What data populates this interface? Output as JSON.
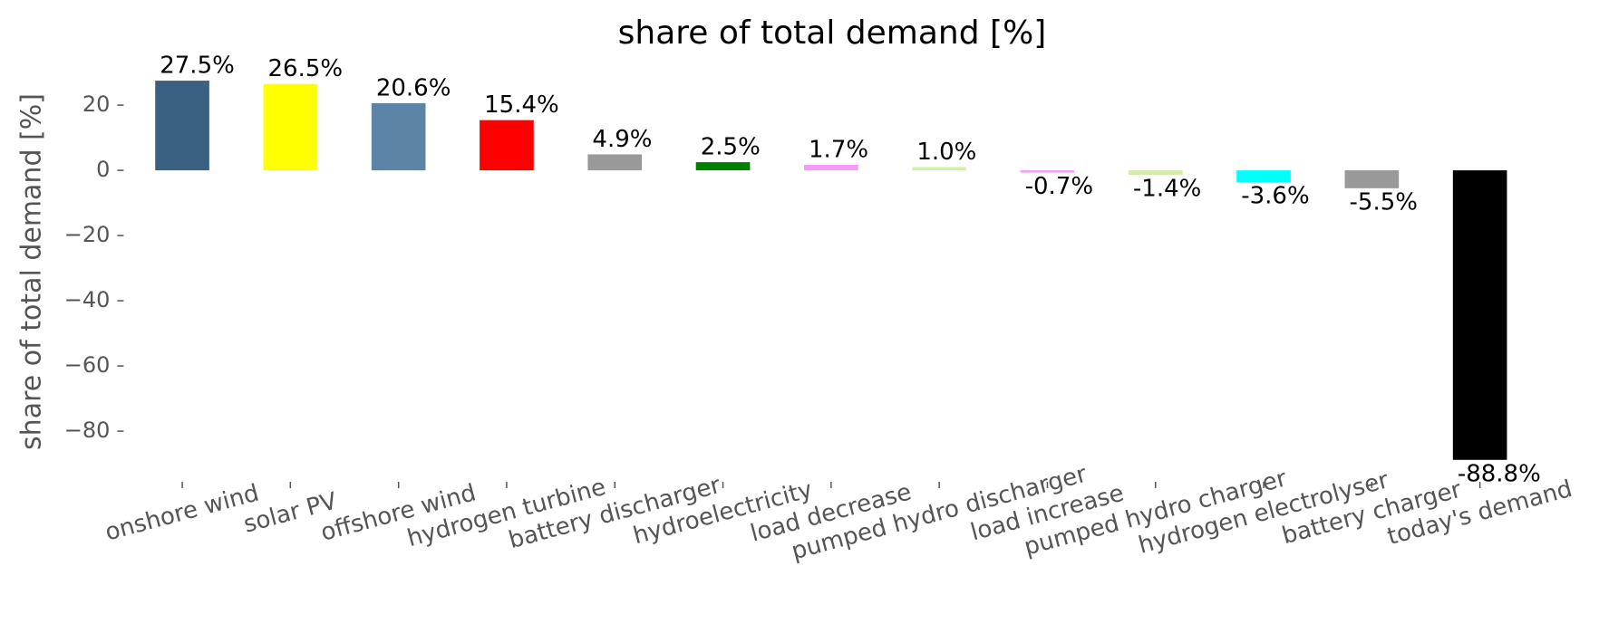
{
  "chart_data": {
    "type": "bar",
    "title": "share of total demand [%]",
    "ylabel": "share of total demand [%]",
    "categories": [
      "onshore wind",
      "solar PV",
      "offshore wind",
      "hydrogen turbine",
      "battery discharger",
      "hydroelectricity",
      "load decrease",
      "pumped hydro discharger",
      "load increase",
      "pumped hydro charger",
      "hydrogen electrolyser",
      "battery charger",
      "today's demand"
    ],
    "values": [
      27.5,
      26.5,
      20.6,
      15.4,
      4.9,
      2.5,
      1.7,
      1.0,
      -0.7,
      -1.4,
      -3.6,
      -5.5,
      -88.8
    ],
    "value_labels": [
      "27.5%",
      "26.5%",
      "20.6%",
      "15.4%",
      "4.9%",
      "2.5%",
      "1.7%",
      "1.0%",
      "-0.7%",
      "-1.4%",
      "-3.6%",
      "-5.5%",
      "-88.8%"
    ],
    "colors": [
      "#3b6182",
      "#ffff00",
      "#5b84a6",
      "#ff0000",
      "#999999",
      "#008000",
      "#f59bf5",
      "#d4f0a0",
      "#f19cf5",
      "#d3ecaa",
      "#00ffff",
      "#999999",
      "#000000"
    ],
    "ylim": [
      -94.7,
      30.3
    ],
    "yticks": [
      {
        "value": -80,
        "label": "−80"
      },
      {
        "value": -60,
        "label": "−60"
      },
      {
        "value": -40,
        "label": "−40"
      },
      {
        "value": -20,
        "label": "−20"
      },
      0,
      20
    ],
    "grid": false
  }
}
